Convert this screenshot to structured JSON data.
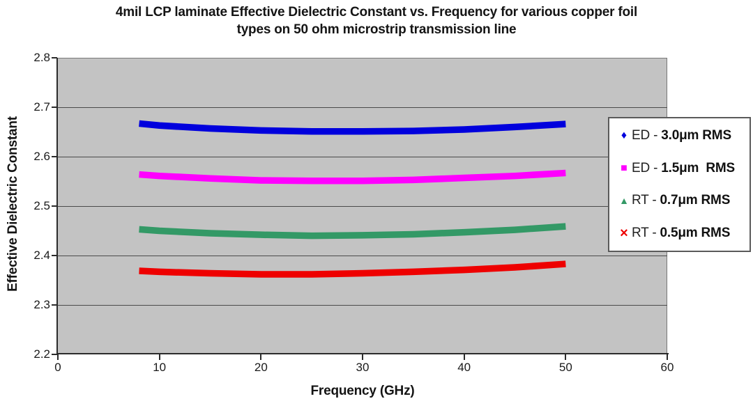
{
  "title": {
    "line1": "4mil LCP laminate Effective Dielectric Constant vs. Frequency for various copper foil",
    "line2": "types on 50 ohm microstrip transmission line"
  },
  "y_axis": {
    "title": "Effective Dielectric Constant",
    "ticks": [
      "2.8",
      "2.7",
      "2.6",
      "2.5",
      "2.4",
      "2.3",
      "2.2"
    ],
    "grid_ticks": [
      2.7,
      2.6,
      2.5,
      2.4,
      2.3
    ]
  },
  "x_axis": {
    "title": "Frequency (GHz)",
    "ticks": [
      "0",
      "10",
      "20",
      "30",
      "40",
      "50",
      "60"
    ]
  },
  "legend": {
    "entries": [
      {
        "icon": "diamond-icon",
        "glyph": "♦",
        "color": "#0000dd",
        "prefix": "ED - ",
        "bold": "3.0μm RMS"
      },
      {
        "icon": "square-icon",
        "glyph": "■",
        "color": "#ff00ff",
        "prefix": "ED - ",
        "bold": "1.5μm  RMS"
      },
      {
        "icon": "triangle-icon",
        "glyph": "▲",
        "color": "#339966",
        "prefix": "RT - ",
        "bold": "0.7μm RMS"
      },
      {
        "icon": "x-icon",
        "glyph": "×",
        "color": "#ee0000",
        "prefix": "RT - ",
        "bold": "0.5μm RMS"
      }
    ]
  },
  "colors": {
    "blue": "#0000dd",
    "magenta": "#ff00ff",
    "green": "#339966",
    "red": "#ee0000",
    "plot_background": "#c3c3c3",
    "gridline": "#4a4a4a"
  },
  "chart_data": {
    "type": "line",
    "title": "4mil LCP laminate Effective Dielectric Constant vs. Frequency for various copper foil types on 50 ohm microstrip transmission line",
    "xlabel": "Frequency (GHz)",
    "ylabel": "Effective Dielectric Constant",
    "xlim": [
      0,
      60
    ],
    "ylim": [
      2.2,
      2.8
    ],
    "xticks": [
      0,
      10,
      20,
      30,
      40,
      50,
      60
    ],
    "yticks": [
      2.2,
      2.3,
      2.4,
      2.5,
      2.6,
      2.7,
      2.8
    ],
    "grid": "horizontal",
    "legend_position": "right-overlay",
    "x": [
      8,
      10,
      15,
      20,
      25,
      30,
      35,
      40,
      45,
      50
    ],
    "series": [
      {
        "name": "ED - 3.0μm RMS",
        "marker": "diamond",
        "color": "#0000dd",
        "values": [
          2.667,
          2.663,
          2.657,
          2.653,
          2.651,
          2.651,
          2.652,
          2.655,
          2.66,
          2.666
        ]
      },
      {
        "name": "ED - 1.5μm RMS",
        "marker": "square",
        "color": "#ff00ff",
        "values": [
          2.564,
          2.561,
          2.556,
          2.552,
          2.551,
          2.551,
          2.553,
          2.557,
          2.561,
          2.567
        ]
      },
      {
        "name": "RT - 0.7μm RMS",
        "marker": "triangle",
        "color": "#339966",
        "values": [
          2.453,
          2.45,
          2.445,
          2.442,
          2.44,
          2.441,
          2.443,
          2.447,
          2.452,
          2.459
        ]
      },
      {
        "name": "RT - 0.5μm RMS",
        "marker": "x",
        "color": "#ee0000",
        "values": [
          2.369,
          2.367,
          2.364,
          2.362,
          2.362,
          2.364,
          2.367,
          2.371,
          2.376,
          2.383
        ]
      }
    ]
  }
}
